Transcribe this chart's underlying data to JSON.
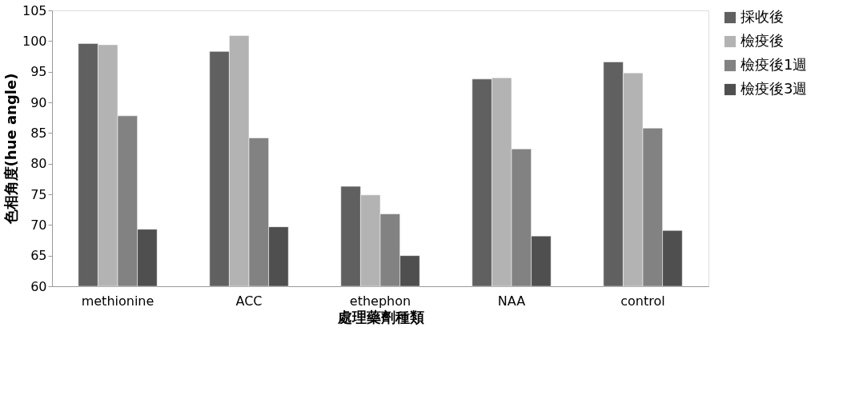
{
  "chart_data": {
    "type": "bar",
    "xlabel": "處理藥劑種類",
    "ylabel": "色相角度(hue angle)",
    "categories": [
      "methionine",
      "ACC",
      "ethephon",
      "NAA",
      "control"
    ],
    "series": [
      {
        "name": "採收後",
        "color": "#606060",
        "values": [
          99.6,
          98.3,
          76.3,
          93.8,
          96.6
        ]
      },
      {
        "name": "檢疫後",
        "color": "#b3b3b3",
        "values": [
          99.4,
          100.9,
          74.9,
          94.0,
          94.8
        ]
      },
      {
        "name": "檢疫後1週",
        "color": "#828282",
        "values": [
          87.8,
          84.2,
          71.8,
          82.4,
          85.8
        ]
      },
      {
        "name": "檢疫後3週",
        "color": "#4f4f4f",
        "values": [
          69.3,
          69.7,
          65.0,
          68.2,
          69.1
        ]
      }
    ],
    "ylim": [
      60,
      105
    ],
    "yticks": [
      60,
      65,
      70,
      75,
      80,
      85,
      90,
      95,
      100,
      105
    ],
    "grid": false,
    "legend": "right"
  }
}
